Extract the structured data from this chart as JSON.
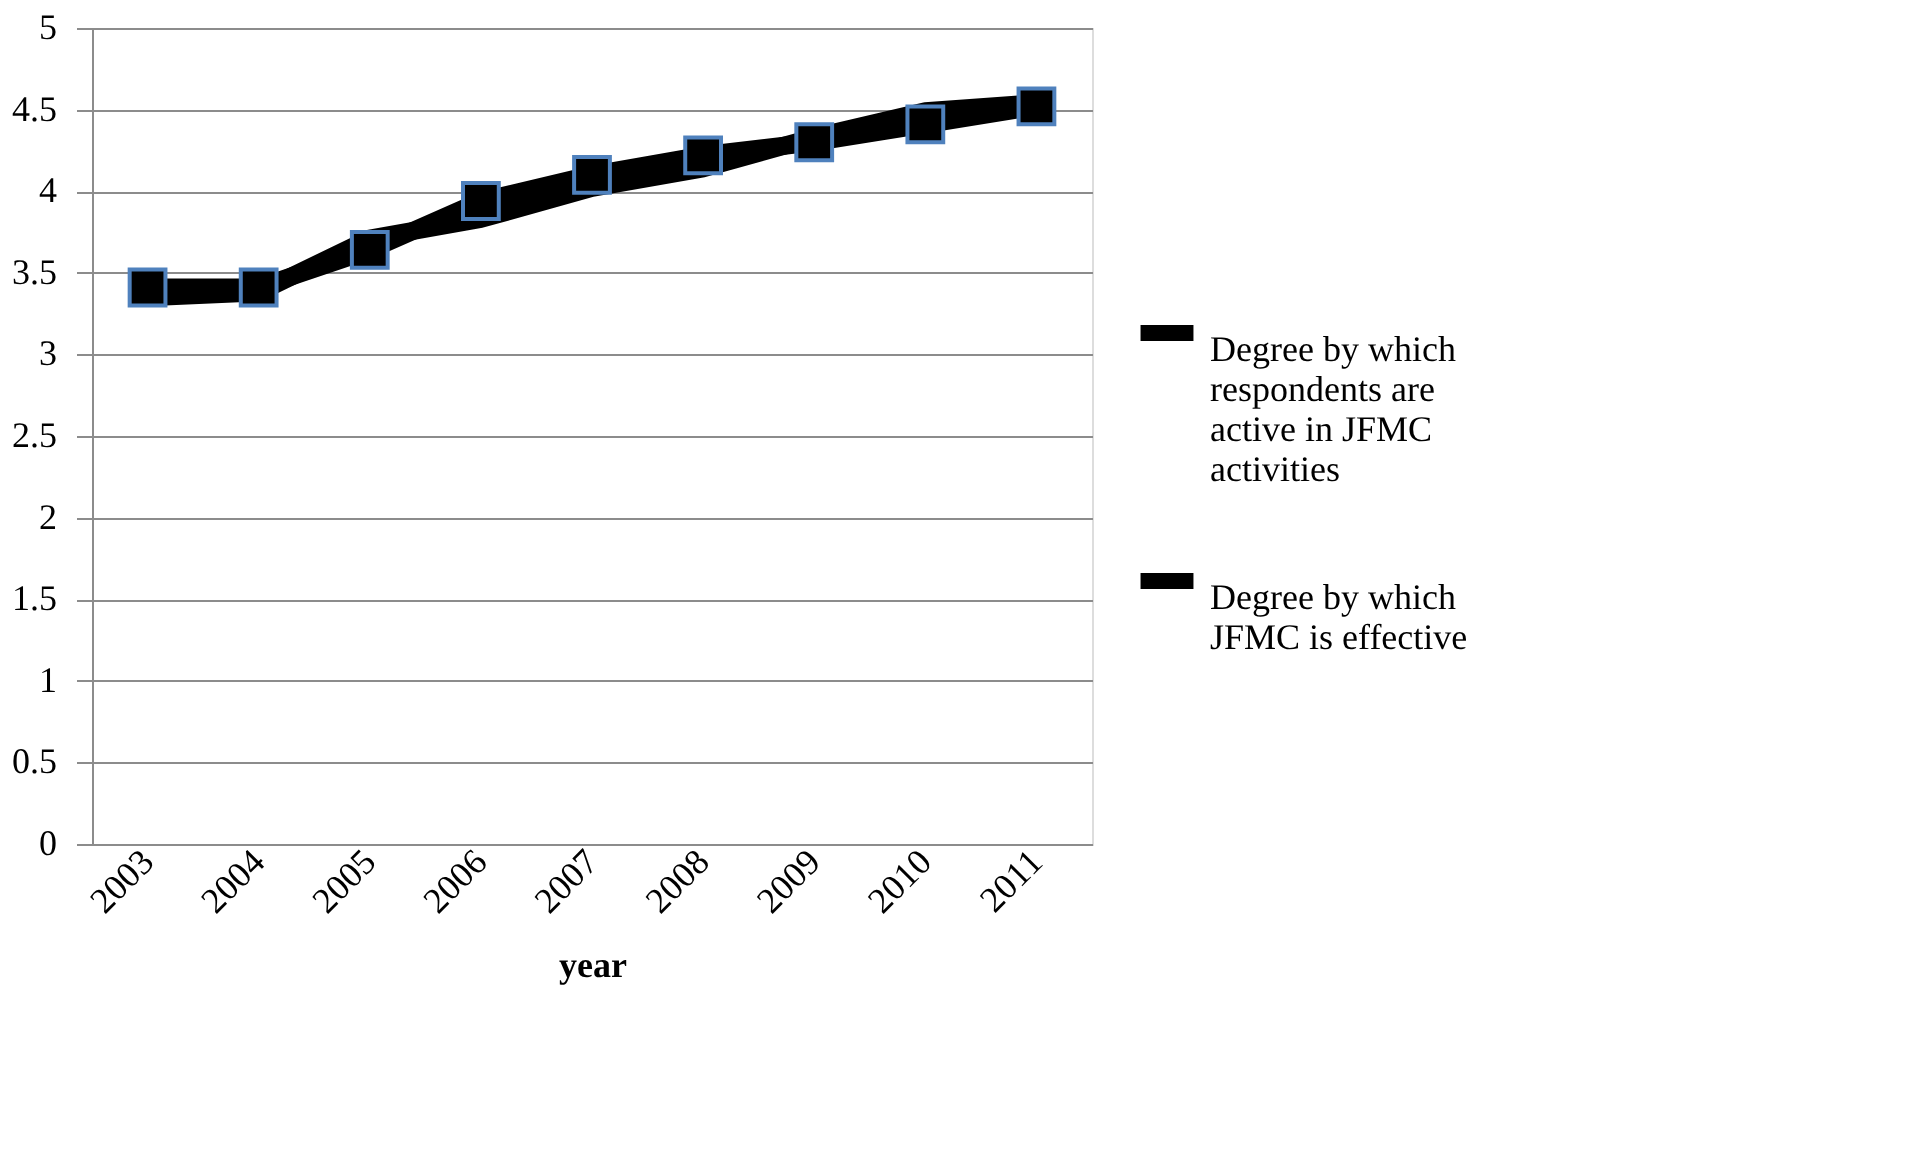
{
  "chart_data": {
    "type": "line",
    "xlabel": "year",
    "categories": [
      "2003",
      "2004",
      "2005",
      "2006",
      "2007",
      "2008",
      "2009",
      "2010",
      "2011"
    ],
    "series": [
      {
        "name": "Degree by which respondents are active in JFMC activities",
        "color": "#000000",
        "marker": "square",
        "values": [
          3.41,
          3.41,
          3.64,
          3.94,
          4.1,
          4.22,
          4.3,
          4.41,
          4.52
        ]
      },
      {
        "name": "Degree by which JFMC is effective",
        "color": "#000000",
        "marker": "none",
        "values": [
          3.35,
          3.38,
          3.71,
          3.83,
          4.02,
          4.14,
          4.33,
          4.49,
          4.54
        ]
      }
    ],
    "ylim": [
      0,
      5
    ],
    "yticks": [
      0,
      0.5,
      1,
      1.5,
      2,
      2.5,
      3,
      3.5,
      4,
      4.5,
      5
    ],
    "grid": "y",
    "legend": "right"
  }
}
